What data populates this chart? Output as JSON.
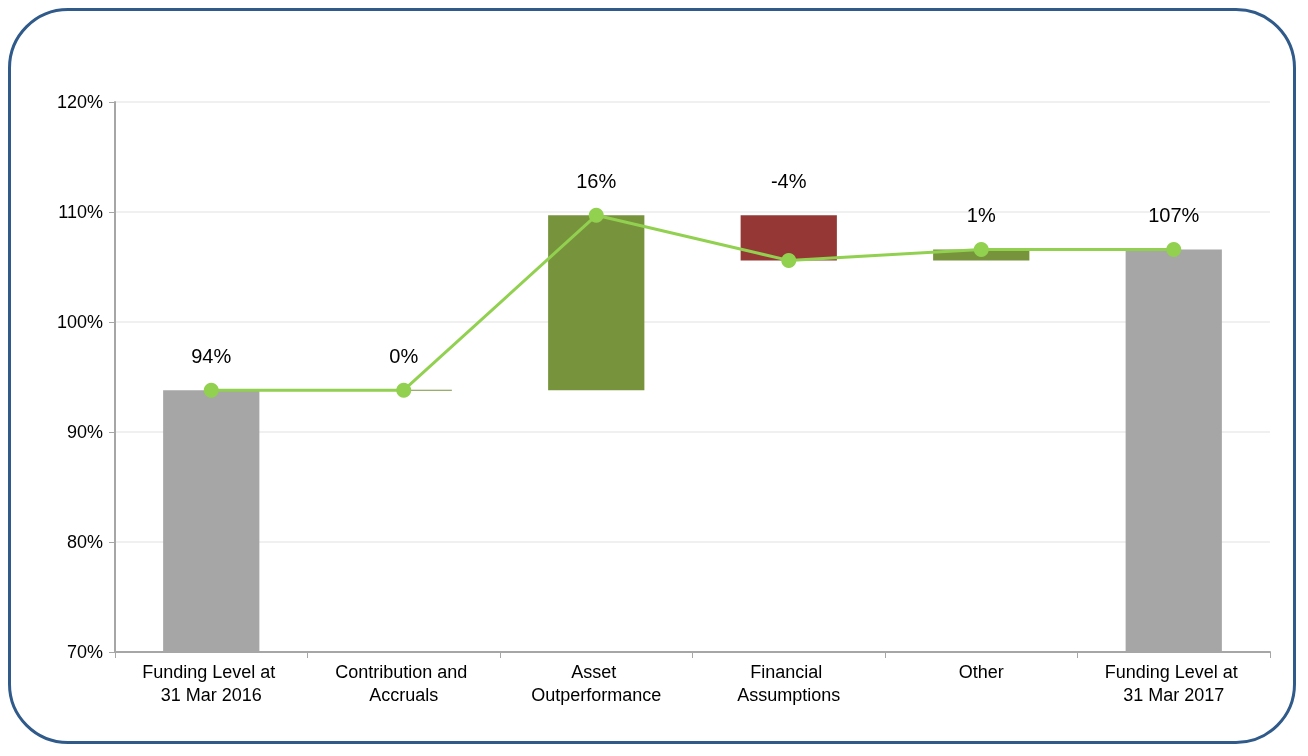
{
  "chart_data": {
    "type": "bar",
    "categories": [
      "Funding Level at 31 Mar 2016",
      "Contribution and Accruals",
      "Asset Outperformance",
      "Financial Assumptions",
      "Other",
      "Funding Level at 31 Mar 2017"
    ],
    "series": [
      {
        "colors": [
          "#a6a6a6",
          "#77933c",
          "#77933c",
          "#953735",
          "#77933c",
          "#a6a6a6"
        ],
        "base": [
          null,
          93.8,
          93.8,
          109.7,
          105.6,
          null
        ],
        "values": [
          93.8,
          0,
          15.9,
          -4.1,
          1.0,
          106.6
        ],
        "value_labels": [
          "94%",
          "0%",
          "16%",
          "-4%",
          "1%",
          "107%"
        ]
      },
      {
        "type": "line",
        "color": "#92d050",
        "marker": "circle",
        "values": [
          93.8,
          93.8,
          109.7,
          105.6,
          106.6,
          106.6
        ]
      }
    ],
    "ylim": [
      70,
      120
    ],
    "yticks": [
      {
        "value": 70,
        "label": "70%"
      },
      {
        "value": 80,
        "label": "80%"
      },
      {
        "value": 90,
        "label": "90%"
      },
      {
        "value": 100,
        "label": "100%"
      },
      {
        "value": 110,
        "label": "110%"
      },
      {
        "value": 120,
        "label": "120%"
      }
    ],
    "grid": "y"
  }
}
